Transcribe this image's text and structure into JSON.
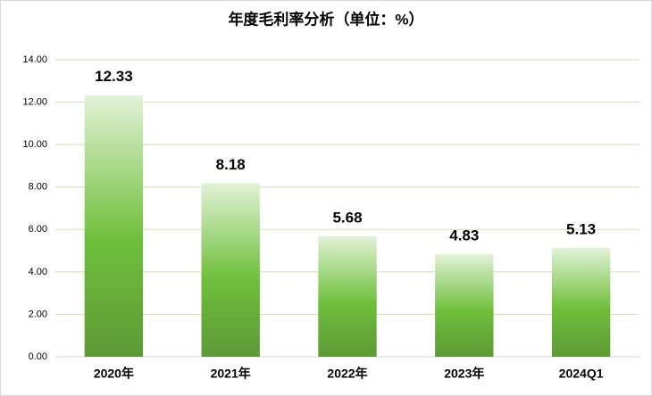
{
  "chart_data": {
    "type": "bar",
    "title": "年度毛利率分析（单位：%）",
    "categories": [
      "2020年",
      "2021年",
      "2022年",
      "2023年",
      "2024Q1"
    ],
    "values": [
      12.33,
      8.18,
      5.68,
      4.83,
      5.13
    ],
    "color": "#6fbf3c",
    "ylim": [
      0,
      14
    ],
    "yticks": [
      {
        "value": 0,
        "label": "0.00"
      },
      {
        "value": 2,
        "label": "2.00"
      },
      {
        "value": 4,
        "label": "4.00"
      },
      {
        "value": 6,
        "label": "6.00"
      },
      {
        "value": 8,
        "label": "8.00"
      },
      {
        "value": 10,
        "label": "10.00"
      },
      {
        "value": 12,
        "label": "12.00"
      },
      {
        "value": 14,
        "label": "14.00"
      }
    ],
    "grid": true
  }
}
